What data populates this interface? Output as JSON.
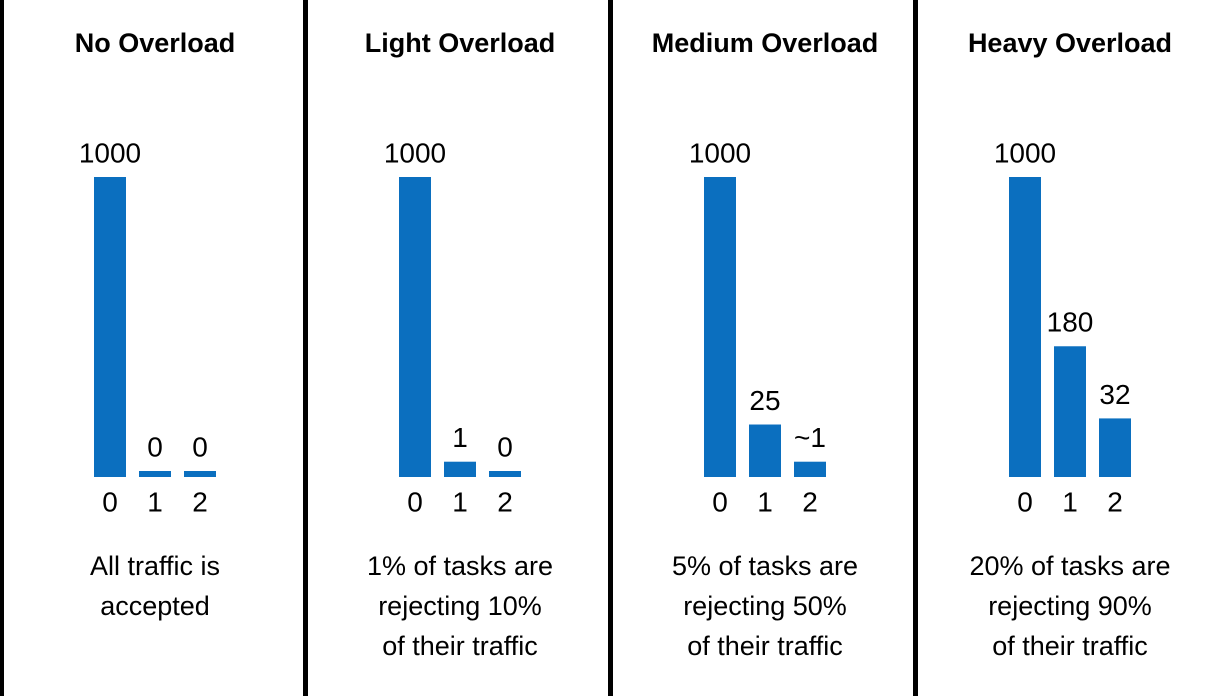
{
  "chart_data": [
    {
      "type": "bar",
      "title": "No Overload",
      "categories": [
        "0",
        "1",
        "2"
      ],
      "values": [
        1000,
        0,
        0
      ],
      "color": "#0b6fbf",
      "caption": [
        "All traffic is",
        "accepted"
      ]
    },
    {
      "type": "bar",
      "title": "Light Overload",
      "categories": [
        "0",
        "1",
        "2"
      ],
      "values": [
        1000,
        1,
        0
      ],
      "color": "#0b6fbf",
      "caption": [
        "1% of tasks are",
        "rejecting 10%",
        "of their traffic"
      ]
    },
    {
      "type": "bar",
      "title": "Medium Overload",
      "categories": [
        "0",
        "1",
        "2"
      ],
      "values": [
        1000,
        25,
        1
      ],
      "value_labels": [
        "1000",
        "25",
        "~1"
      ],
      "color": "#0b6fbf",
      "caption": [
        "5% of tasks are",
        "rejecting 50%",
        "of their traffic"
      ]
    },
    {
      "type": "bar",
      "title": "Heavy Overload",
      "categories": [
        "0",
        "1",
        "2"
      ],
      "values": [
        1000,
        180,
        32
      ],
      "color": "#0b6fbf",
      "caption": [
        "20% of tasks are",
        "rejecting 90%",
        "of their traffic"
      ]
    }
  ]
}
